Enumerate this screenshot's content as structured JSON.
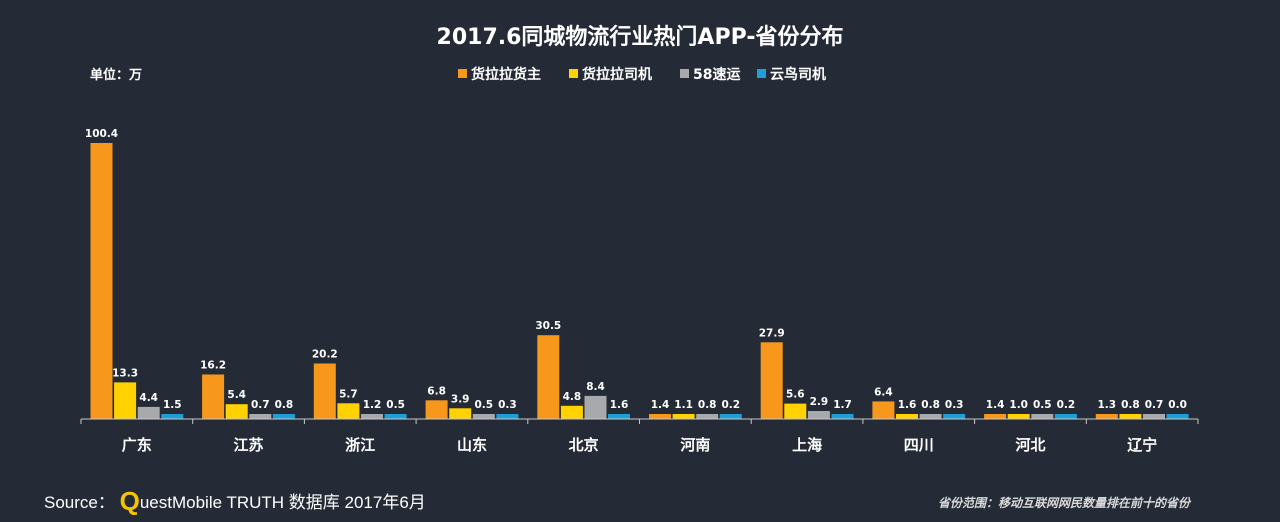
{
  "footer": {
    "source_label": "Source：",
    "logo_q": "Q",
    "source_rest": "uestMobile TRUTH 数据库 2017年6月",
    "note": "省份范围：移动互联网网民数量排在前十的省份"
  },
  "colors": {
    "background": "#252b36",
    "axis": "#c8c8c8",
    "series": [
      "#f7981d",
      "#ffd200",
      "#a7a9ac",
      "#1e9fd5"
    ]
  },
  "chart_data": {
    "type": "bar",
    "title": "2017.6同城物流行业热门APP-省份分布",
    "unit_label": "单位：万",
    "xlabel": "",
    "ylabel": "",
    "ylim": [
      0,
      100.4
    ],
    "grid": false,
    "legend_position": "top",
    "categories": [
      "广东",
      "江苏",
      "浙江",
      "山东",
      "北京",
      "河南",
      "上海",
      "四川",
      "河北",
      "辽宁"
    ],
    "series": [
      {
        "name": "货拉拉货主",
        "values": [
          100.4,
          16.2,
          20.2,
          6.8,
          30.5,
          1.4,
          27.9,
          6.4,
          1.4,
          1.3
        ]
      },
      {
        "name": "货拉拉司机",
        "values": [
          13.3,
          5.4,
          5.7,
          3.9,
          4.8,
          1.1,
          5.6,
          1.6,
          1.0,
          0.8
        ]
      },
      {
        "name": "58速运",
        "values": [
          4.4,
          0.7,
          1.2,
          0.5,
          8.4,
          0.8,
          2.9,
          0.8,
          0.5,
          0.7
        ]
      },
      {
        "name": "云鸟司机",
        "values": [
          1.5,
          0.8,
          0.5,
          0.3,
          1.6,
          0.2,
          1.7,
          0.3,
          0.2,
          0.0
        ]
      }
    ]
  }
}
